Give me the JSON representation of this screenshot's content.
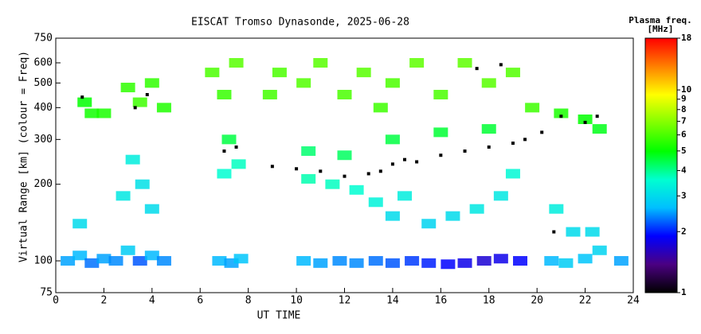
{
  "chart_data": {
    "type": "scatter",
    "title": "EISCAT Tromso Dynasonde, 2025-06-28",
    "x_label": "UT TIME",
    "y_label": "Virtual Range [km] (colour = Freq)",
    "xlim": [
      0,
      24
    ],
    "xticks": [
      0,
      2,
      4,
      6,
      8,
      10,
      12,
      14,
      16,
      18,
      20,
      22,
      24
    ],
    "ylim": [
      75,
      750
    ],
    "yticks": [
      75,
      100,
      200,
      300,
      400,
      500,
      600,
      750
    ],
    "y_log": true,
    "colorbar": {
      "title": "Plasma freq.",
      "unit": "[MHz]",
      "zlim": [
        1,
        18
      ],
      "ticks": [
        1,
        2,
        3,
        4,
        5,
        6,
        7,
        8,
        9,
        10,
        18
      ],
      "log": true,
      "colormap": [
        "#000000",
        "#4b0082",
        "#0000ff",
        "#00bfff",
        "#00ffd0",
        "#00ff00",
        "#80ff00",
        "#ffff00",
        "#ff8000",
        "#ff0000"
      ]
    },
    "points": {
      "x": [
        0.5,
        1.0,
        1.5,
        2.0,
        2.5,
        3.0,
        3.5,
        4.0,
        4.5,
        6.8,
        7.3,
        7.7,
        10.3,
        11.0,
        11.8,
        12.5,
        13.3,
        14.0,
        14.8,
        15.5,
        16.3,
        17.0,
        17.8,
        18.5,
        19.3,
        20.6,
        21.2,
        22.0,
        22.6,
        23.5,
        1.0,
        2.8,
        3.2,
        3.6,
        4.0,
        7.0,
        7.6,
        10.5,
        11.5,
        12.5,
        13.3,
        14.0,
        14.5,
        15.5,
        16.5,
        17.5,
        18.5,
        19.0,
        20.8,
        21.5,
        22.3,
        1.2,
        1.5,
        2.0,
        3.0,
        3.5,
        4.0,
        4.5,
        6.5,
        7.0,
        7.5,
        8.9,
        9.3,
        10.3,
        11.0,
        12.0,
        12.8,
        13.5,
        14.0,
        15.0,
        16.0,
        17.0,
        18.0,
        19.0,
        19.8,
        21.0,
        22.0,
        22.6,
        10.5,
        12.0,
        14.0,
        16.0,
        18.0,
        7.2
      ],
      "y": [
        100,
        105,
        98,
        102,
        100,
        110,
        100,
        105,
        100,
        100,
        98,
        102,
        100,
        98,
        100,
        98,
        100,
        98,
        100,
        98,
        97,
        98,
        100,
        102,
        100,
        100,
        98,
        102,
        110,
        100,
        140,
        180,
        250,
        200,
        160,
        220,
        240,
        210,
        200,
        190,
        170,
        150,
        180,
        140,
        150,
        160,
        180,
        220,
        160,
        130,
        130,
        420,
        380,
        380,
        480,
        420,
        500,
        400,
        550,
        450,
        600,
        450,
        550,
        500,
        600,
        450,
        550,
        400,
        500,
        600,
        450,
        600,
        500,
        550,
        400,
        380,
        360,
        330,
        270,
        260,
        300,
        320,
        330,
        300
      ],
      "z": [
        2.5,
        2.6,
        2.3,
        2.5,
        2.4,
        2.8,
        2.2,
        2.6,
        2.4,
        2.6,
        2.5,
        2.7,
        2.6,
        2.5,
        2.4,
        2.4,
        2.3,
        2.2,
        2.1,
        2.0,
        1.9,
        1.8,
        1.7,
        1.8,
        1.9,
        2.6,
        2.8,
        2.7,
        2.9,
        2.5,
        3.0,
        3.2,
        3.3,
        3.1,
        3.0,
        3.6,
        3.7,
        3.8,
        3.7,
        3.6,
        3.4,
        3.0,
        3.3,
        2.9,
        3.0,
        3.2,
        3.2,
        3.5,
        3.3,
        3.0,
        3.0,
        5.0,
        5.2,
        5.3,
        5.6,
        5.8,
        5.6,
        5.4,
        6.0,
        5.7,
        6.2,
        5.9,
        6.0,
        6.1,
        6.2,
        6.0,
        6.2,
        5.8,
        6.0,
        6.3,
        6.0,
        6.3,
        6.2,
        6.1,
        5.8,
        5.3,
        5.0,
        4.8,
        4.2,
        4.3,
        4.5,
        4.6,
        4.6,
        4.5
      ]
    },
    "peaks": {
      "color": "#000000",
      "x": [
        1.1,
        3.3,
        3.8,
        7.0,
        7.5,
        9.0,
        10.0,
        11.0,
        12.0,
        13.0,
        13.5,
        14.0,
        14.5,
        15.0,
        16.0,
        17.0,
        17.5,
        18.0,
        18.5,
        19.0,
        19.5,
        20.2,
        21.0,
        22.0,
        22.5,
        20.7
      ],
      "y": [
        440,
        400,
        450,
        270,
        280,
        235,
        230,
        225,
        215,
        220,
        225,
        240,
        250,
        245,
        260,
        270,
        570,
        280,
        590,
        290,
        300,
        320,
        370,
        350,
        370,
        130
      ]
    }
  }
}
